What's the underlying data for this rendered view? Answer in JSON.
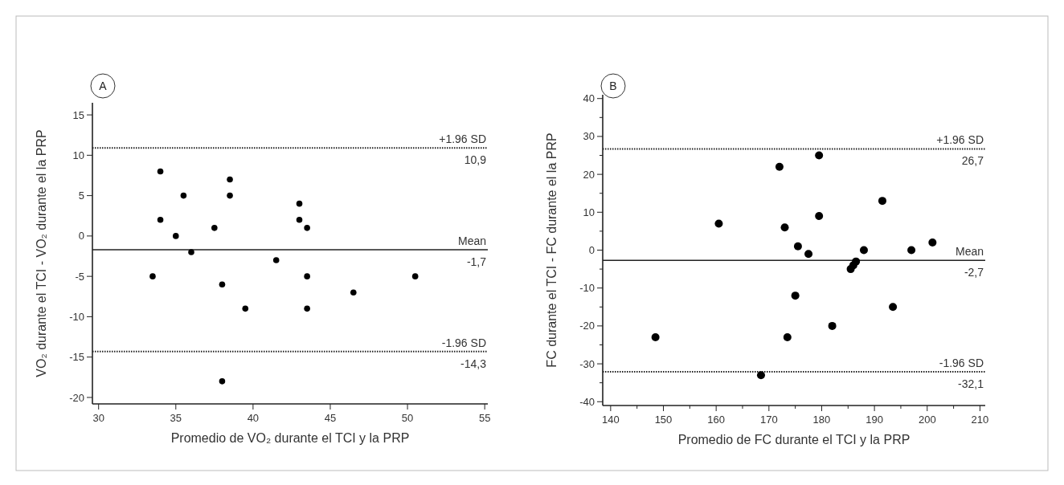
{
  "chart_data": [
    {
      "type": "scatter",
      "title": "A",
      "xlabel": "Promedio de VO₂ durante el TCI y la PRP",
      "ylabel": "VO₂ durante el TCI - VO₂ durante el la PRP",
      "marker": "circle",
      "xlim": [
        29.6,
        55.2
      ],
      "ylim": [
        -20.8,
        16.5
      ],
      "xticks": [
        30,
        35,
        40,
        45,
        50,
        55
      ],
      "yticks": [
        -20,
        -15,
        -10,
        -5,
        0,
        5,
        10,
        15
      ],
      "series": [
        {
          "color": "#000000",
          "x": [
            33.5,
            34,
            34,
            35,
            35.5,
            36,
            37.5,
            38,
            38,
            38.5,
            38.5,
            39.5,
            41.5,
            43,
            43,
            43.5,
            43.5,
            43.5,
            46.5,
            50.5
          ],
          "values": [
            -5,
            8,
            2,
            0,
            5,
            -2,
            1,
            -6,
            -18,
            7,
            5,
            -9,
            -3,
            4,
            2,
            1,
            -5,
            -9,
            -7,
            -5
          ]
        }
      ],
      "ref_lines": [
        {
          "axis": "y",
          "value": 10.9,
          "label": "+1.96 SD",
          "line_style": "dotted"
        },
        {
          "axis": "y",
          "value": -1.7,
          "label": "Mean",
          "line_style": "solid"
        },
        {
          "axis": "y",
          "value": -14.3,
          "label": "-1.96 SD",
          "line_style": "dotted"
        }
      ],
      "annotations": [
        {
          "text": "10,9",
          "y": 10.9
        },
        {
          "text": "-1,7",
          "y": -1.7
        },
        {
          "text": "-14,3",
          "y": -14.3
        }
      ]
    },
    {
      "type": "scatter",
      "title": "B",
      "xlabel": "Promedio de FC durante el TCI y la PRP",
      "ylabel": "FC durante el TCI - FC durante el la PRP",
      "marker": "circle",
      "xlim": [
        138.5,
        211
      ],
      "ylim": [
        -41,
        41
      ],
      "xticks": [
        140,
        {
          "value": 145,
          "label": null
        },
        150,
        {
          "value": 155,
          "label": null
        },
        160,
        {
          "value": 165,
          "label": null
        },
        170,
        {
          "value": 175,
          "label": null
        },
        180,
        {
          "value": 185,
          "label": null
        },
        190,
        {
          "value": 195,
          "label": null
        },
        200,
        {
          "value": 205,
          "label": null
        },
        210
      ],
      "yticks": [
        -40,
        {
          "value": -35,
          "label": null
        },
        -30,
        {
          "value": -25,
          "label": null
        },
        -20,
        {
          "value": -15,
          "label": null
        },
        -10,
        {
          "value": -5,
          "label": null
        },
        0,
        {
          "value": 5,
          "label": null
        },
        10,
        {
          "value": 15,
          "label": null
        },
        20,
        {
          "value": 25,
          "label": null
        },
        30,
        {
          "value": 35,
          "label": null
        },
        40
      ],
      "series": [
        {
          "color": "#000000",
          "x": [
            148.5,
            160.5,
            168.5,
            172,
            173,
            173.5,
            175,
            175.5,
            177.5,
            179.5,
            179.5,
            182,
            185.5,
            186,
            186.5,
            188,
            191.5,
            193.5,
            197,
            201
          ],
          "values": [
            -23,
            7,
            -33,
            22,
            6,
            -23,
            -12,
            1,
            -1,
            25,
            9,
            -20,
            -5,
            -4,
            -3,
            0,
            13,
            -15,
            0,
            2
          ]
        }
      ],
      "ref_lines": [
        {
          "axis": "y",
          "value": 26.7,
          "label": "+1.96 SD",
          "line_style": "dotted"
        },
        {
          "axis": "y",
          "value": -2.7,
          "label": "Mean",
          "line_style": "solid"
        },
        {
          "axis": "y",
          "value": -32.1,
          "label": "-1.96 SD",
          "line_style": "dotted"
        }
      ],
      "annotations": [
        {
          "text": "26,7",
          "y": 26.7
        },
        {
          "text": "-2,7",
          "y": -2.7
        },
        {
          "text": "-32,1",
          "y": -32.1
        }
      ]
    }
  ]
}
